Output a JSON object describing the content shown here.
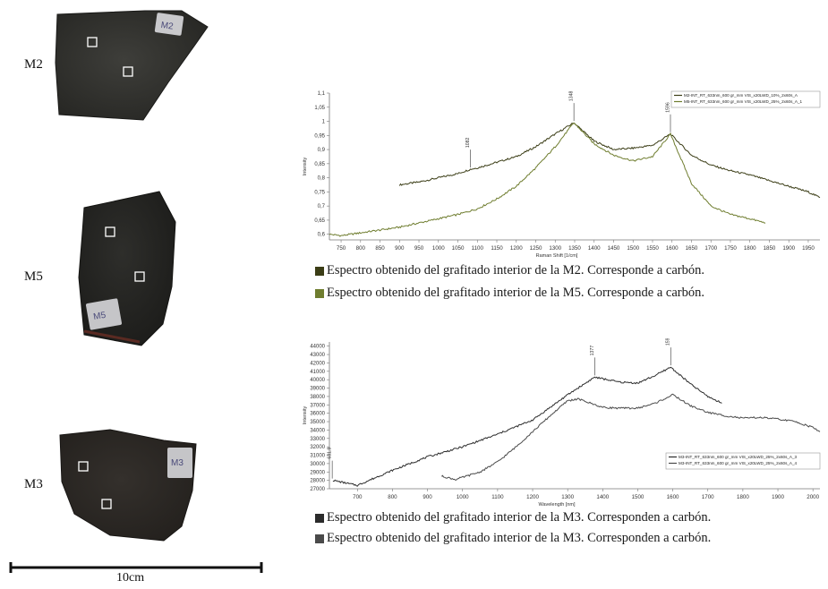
{
  "samples": [
    {
      "id": "M2",
      "tag": "M2"
    },
    {
      "id": "M5",
      "tag": "M5"
    },
    {
      "id": "M3",
      "tag": "M3"
    }
  ],
  "scale_bar": {
    "label": "10cm"
  },
  "captions": [
    {
      "text": "Espectro obtenido del grafitado interior de la M2. Corresponde a carbón.",
      "color": "#3b3d16"
    },
    {
      "text": "Espectro obtenido del grafitado interior de la M5. Corresponde a carbón.",
      "color": "#6f7d2f"
    },
    {
      "text": "Espectro obtenido del grafitado interior de la M3. Corresponden a carbón.",
      "color": "#2b2b2b"
    },
    {
      "text": "Espectro obtenido del grafitado interior de la M3. Corresponden a carbón.",
      "color": "#4a4a4a"
    }
  ],
  "chart_data": [
    {
      "type": "line",
      "xlabel": "Raman Shift [1/cm]",
      "ylabel": "Intensity",
      "xlim": [
        720,
        1980
      ],
      "ylim": [
        0.58,
        1.1
      ],
      "xticks": [
        750,
        800,
        850,
        900,
        950,
        1000,
        1050,
        1100,
        1150,
        1200,
        1250,
        1300,
        1350,
        1400,
        1450,
        1500,
        1550,
        1600,
        1650,
        1700,
        1750,
        1800,
        1850,
        1900,
        1950
      ],
      "yticks": [
        0.6,
        0.65,
        0.7,
        0.75,
        0.8,
        0.85,
        0.9,
        0.95,
        1,
        1.05,
        1.1
      ],
      "ytick_labels": [
        "0,6",
        "0,65",
        "0,7",
        "0,75",
        "0,8",
        "0,85",
        "0,9",
        "0,95",
        "1",
        "1,05",
        "1,1"
      ],
      "legend_position": "top-right",
      "annotations": [
        {
          "x": 1082,
          "y": 0.83,
          "label": "1082"
        },
        {
          "x": 1348,
          "y": 0.995,
          "label": "1348"
        },
        {
          "x": 1596,
          "y": 0.955,
          "label": "1596"
        }
      ],
      "series": [
        {
          "name": "M2-INT_RT_633nm_600 gr_mm VIS_x20LWD_10%_2x60s_A",
          "color": "#3b3d16",
          "x": [
            900,
            950,
            1000,
            1050,
            1082,
            1100,
            1150,
            1200,
            1250,
            1300,
            1348,
            1400,
            1450,
            1500,
            1550,
            1596,
            1650,
            1700,
            1750,
            1800,
            1850,
            1900,
            1950,
            1980
          ],
          "values": [
            0.775,
            0.785,
            0.8,
            0.815,
            0.83,
            0.835,
            0.855,
            0.875,
            0.91,
            0.955,
            0.995,
            0.93,
            0.9,
            0.905,
            0.915,
            0.955,
            0.88,
            0.845,
            0.825,
            0.81,
            0.79,
            0.77,
            0.75,
            0.73
          ]
        },
        {
          "name": "M5-INT_RT_633nm_600 gr_mm VIS_x20LWD_25%_2x60s_A_1",
          "color": "#6f7d2f",
          "x": [
            720,
            750,
            800,
            850,
            900,
            950,
            1000,
            1050,
            1100,
            1150,
            1200,
            1250,
            1300,
            1348,
            1400,
            1450,
            1500,
            1550,
            1596,
            1650,
            1700,
            1750,
            1800,
            1840
          ],
          "values": [
            0.6,
            0.595,
            0.605,
            0.615,
            0.625,
            0.64,
            0.655,
            0.67,
            0.69,
            0.725,
            0.77,
            0.835,
            0.91,
            0.995,
            0.92,
            0.88,
            0.86,
            0.875,
            0.955,
            0.78,
            0.7,
            0.67,
            0.655,
            0.64
          ]
        }
      ]
    },
    {
      "type": "line",
      "xlabel": "Wavelength [nm]",
      "ylabel": "Intensity",
      "xlim": [
        620,
        2020
      ],
      "ylim": [
        27000,
        44500
      ],
      "xticks": [
        700,
        800,
        900,
        1000,
        1100,
        1200,
        1300,
        1400,
        1500,
        1600,
        1700,
        1800,
        1900,
        2000
      ],
      "yticks": [
        27000,
        28000,
        29000,
        30000,
        31000,
        32000,
        33000,
        34000,
        35000,
        36000,
        37000,
        38000,
        39000,
        40000,
        41000,
        42000,
        43000,
        44000
      ],
      "legend_position": "bottom-right",
      "annotations": [
        {
          "x": 628,
          "y": 28000,
          "label": "631.9"
        },
        {
          "x": 1377,
          "y": 40300,
          "label": "1377"
        },
        {
          "x": 1594,
          "y": 41500,
          "label": "1594"
        }
      ],
      "series": [
        {
          "name": "M3-INT_RT_633nm_600 gr_mm VIS_x20LWD_25%_2x60s_A_3",
          "color": "#2b2b2b",
          "x": [
            630,
            700,
            800,
            900,
            1000,
            1100,
            1200,
            1300,
            1377,
            1450,
            1500,
            1550,
            1594,
            1650,
            1700,
            1740
          ],
          "values": [
            28000,
            27400,
            29200,
            30800,
            32000,
            33500,
            35200,
            38200,
            40300,
            39700,
            39600,
            40500,
            41500,
            39500,
            38000,
            37200
          ]
        },
        {
          "name": "M3-INT_RT_633nm_600 gr_mm VIS_x20LWD_25%_2x60s_A_4",
          "color": "#4a4a4a",
          "x": [
            940,
            980,
            1050,
            1100,
            1150,
            1200,
            1250,
            1300,
            1330,
            1400,
            1450,
            1500,
            1550,
            1600,
            1650,
            1700,
            1750,
            1800,
            1850,
            1900,
            1950,
            2000,
            2020
          ],
          "values": [
            28500,
            28100,
            29000,
            30200,
            31900,
            33800,
            35700,
            37500,
            37700,
            36700,
            36600,
            36600,
            37200,
            38200,
            36900,
            36100,
            35700,
            35400,
            35500,
            35300,
            35000,
            34300,
            33800
          ]
        }
      ]
    }
  ]
}
